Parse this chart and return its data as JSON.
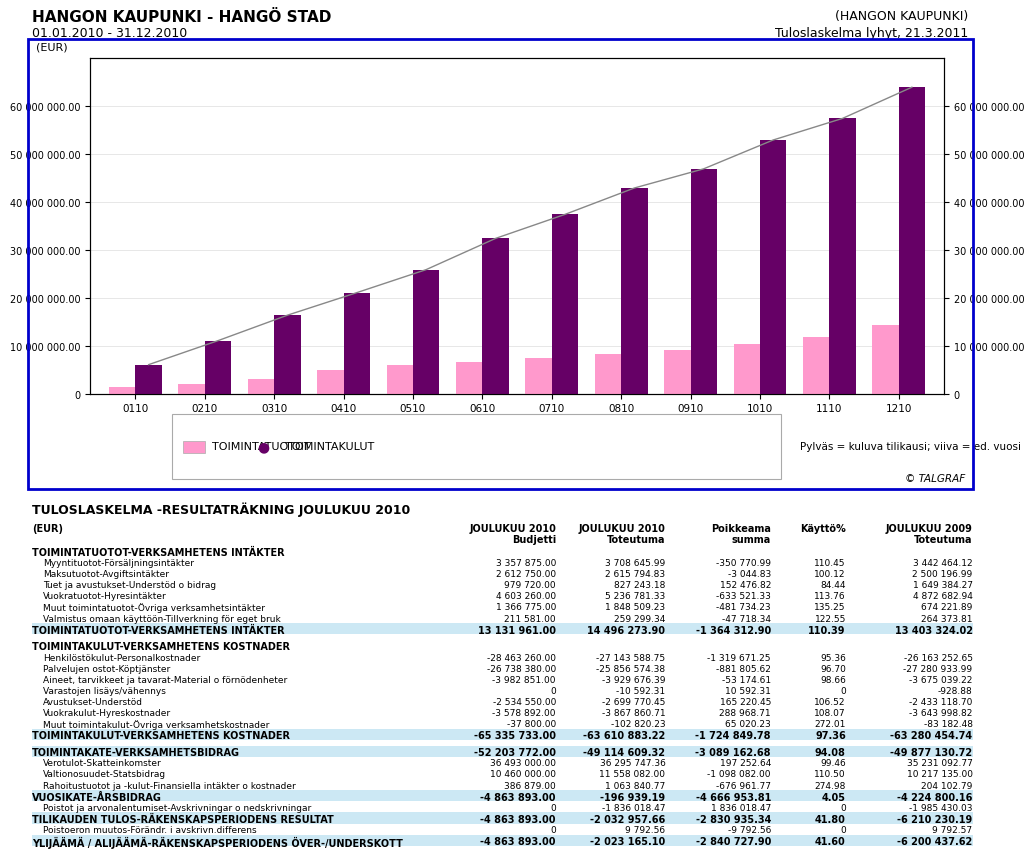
{
  "title_left1": "HANGON KAUPUNKI - HANGÖ STAD",
  "title_left2": "01.01.2010 - 31.12.2010",
  "title_right1": "(HANGON KAUPUNKI)",
  "title_right2": "Tuloslaskelma lyhyt, 21.3.2011",
  "chart_label_eur": "(EUR)",
  "bar_categories": [
    "0110",
    "0210",
    "0310",
    "0410",
    "0510",
    "0610",
    "0710",
    "0810",
    "0910",
    "1010",
    "1110",
    "1210"
  ],
  "tuotot_bars": [
    1500000,
    2200000,
    3200000,
    5000000,
    6200000,
    6800000,
    7500000,
    8500000,
    9300000,
    10500000,
    12000000,
    14500000
  ],
  "kulut_bars": [
    6200000,
    11200000,
    16500000,
    21200000,
    26000000,
    32500000,
    37500000,
    43000000,
    47000000,
    53000000,
    57500000,
    64000000
  ],
  "tuotot_color": "#ff99cc",
  "kulut_color": "#660066",
  "line_color": "#888888",
  "ylim": [
    0,
    70000000
  ],
  "yticks": [
    0,
    10000000,
    20000000,
    30000000,
    40000000,
    50000000,
    60000000
  ],
  "legend_tuotot": "TOIMINTATUOTOT",
  "legend_kulut": "TOIMINTAKULUT",
  "legend_note": "Pylväs = kuluva tilikausi; viiva = ed. vuosi",
  "talgraf": "© TALGRAF",
  "table_title": "TULOSLASKELMA -RESULTATRÄKNING JOULUKUU 2010",
  "section1_header": "TOIMINTATUOTOT-VERKSAMHETENS INTÄKTER",
  "section1_rows": [
    [
      "Myyntituotot-Försäljningsintäkter",
      "3 357 875.00",
      "3 708 645.99",
      "-350 770.99",
      "110.45",
      "3 442 464.12"
    ],
    [
      "Maksutuotot-Avgiftsintäkter",
      "2 612 750.00",
      "2 615 794.83",
      "-3 044.83",
      "100.12",
      "2 500 196.99"
    ],
    [
      "Tuet ja avustukset-Understöd o bidrag",
      "979 720.00",
      "827 243.18",
      "152 476.82",
      "84.44",
      "1 649 384.27"
    ],
    [
      "Vuokratuotot-Hyresintäkter",
      "4 603 260.00",
      "5 236 781.33",
      "-633 521.33",
      "113.76",
      "4 872 682.94"
    ],
    [
      "Muut toimintatuotot-Övriga verksamhetsintäkter",
      "1 366 775.00",
      "1 848 509.23",
      "-481 734.23",
      "135.25",
      "674 221.89"
    ],
    [
      "Valmistus omaan käyttöön-Tillverkning för eget bruk",
      "211 581.00",
      "259 299.34",
      "-47 718.34",
      "122.55",
      "264 373.81"
    ]
  ],
  "section1_total": [
    "TOIMINTATUOTOT-VERKSAMHETENS INTÄKTER",
    "13 131 961.00",
    "14 496 273.90",
    "-1 364 312.90",
    "110.39",
    "13 403 324.02"
  ],
  "section2_header": "TOIMINTAKULUT-VERKSAMHETENS KOSTNADER",
  "section2_rows": [
    [
      "Henkilöstökulut-Personalkostnader",
      "-28 463 260.00",
      "-27 143 588.75",
      "-1 319 671.25",
      "95.36",
      "-26 163 252.65"
    ],
    [
      "Palvelujen ostot-Köptjänster",
      "-26 738 380.00",
      "-25 856 574.38",
      "-881 805.62",
      "96.70",
      "-27 280 933.99"
    ],
    [
      "Aineet, tarvikkeet ja tavarat-Material o förnödenheter",
      "-3 982 851.00",
      "-3 929 676.39",
      "-53 174.61",
      "98.66",
      "-3 675 039.22"
    ],
    [
      "Varastojen lisäys/vähennys",
      "0",
      "-10 592.31",
      "10 592.31",
      "0",
      "-928.88"
    ],
    [
      "Avustukset-Understöd",
      "-2 534 550.00",
      "-2 699 770.45",
      "165 220.45",
      "106.52",
      "-2 433 118.70"
    ],
    [
      "Vuokrakulut-Hyreskostnader",
      "-3 578 892.00",
      "-3 867 860.71",
      "288 968.71",
      "108.07",
      "-3 643 998.82"
    ],
    [
      "Muut toimintakulut-Övriga verksamhetskostnader",
      "-37 800.00",
      "-102 820.23",
      "65 020.23",
      "272.01",
      "-83 182.48"
    ]
  ],
  "section2_total": [
    "TOIMINTAKULUT-VERKSAMHETENS KOSTNADER",
    "-65 335 733.00",
    "-63 610 883.22",
    "-1 724 849.78",
    "97.36",
    "-63 280 454.74"
  ],
  "toimintakate": [
    "TOIMINTAKATE-VERKSAMHETSBIDRAG",
    "-52 203 772.00",
    "-49 114 609.32",
    "-3 089 162.68",
    "94.08",
    "-49 877 130.72"
  ],
  "section3_rows": [
    [
      "Verotulot-Skatteinkomster",
      "36 493 000.00",
      "36 295 747.36",
      "197 252.64",
      "99.46",
      "35 231 092.77"
    ],
    [
      "Valtionosuudet-Statsbidrag",
      "10 460 000.00",
      "11 558 082.00",
      "-1 098 082.00",
      "110.50",
      "10 217 135.00"
    ],
    [
      "Rahoitustuotot ja -kulut-Finansiella intäkter o kostnader",
      "386 879.00",
      "1 063 840.77",
      "-676 961.77",
      "274.98",
      "204 102.79"
    ]
  ],
  "vuosikate": [
    "VUOSIKATE-ÅRSBIDRAG",
    "-4 863 893.00",
    "-196 939.19",
    "-4 666 953.81",
    "4.05",
    "-4 224 800.16"
  ],
  "section4_rows": [
    [
      "Poistot ja arvonalentumiset-Avskrivningar o nedskrivningar",
      "0",
      "-1 836 018.47",
      "1 836 018.47",
      "0",
      "-1 985 430.03"
    ]
  ],
  "tilikauden": [
    "TILIKAUDEN TULOS-RÄKENSKAPSPERIODENS RESULTAT",
    "-4 863 893.00",
    "-2 032 957.66",
    "-2 830 935.34",
    "41.80",
    "-6 210 230.19"
  ],
  "section5_rows": [
    [
      "Poistoeron muutos-Förändr. i avskrivn.differens",
      "0",
      "9 792.56",
      "-9 792.56",
      "0",
      "9 792.57"
    ]
  ],
  "ylijäämä": [
    "YLIJÄÄMÄ / ALIJÄÄMÄ-RÄKENSKAPSPERIODENS ÖVER-/UNDERSKOTT",
    "-4 863 893.00",
    "-2 023 165.10",
    "-2 840 727.90",
    "41.60",
    "-6 200 437.62"
  ]
}
